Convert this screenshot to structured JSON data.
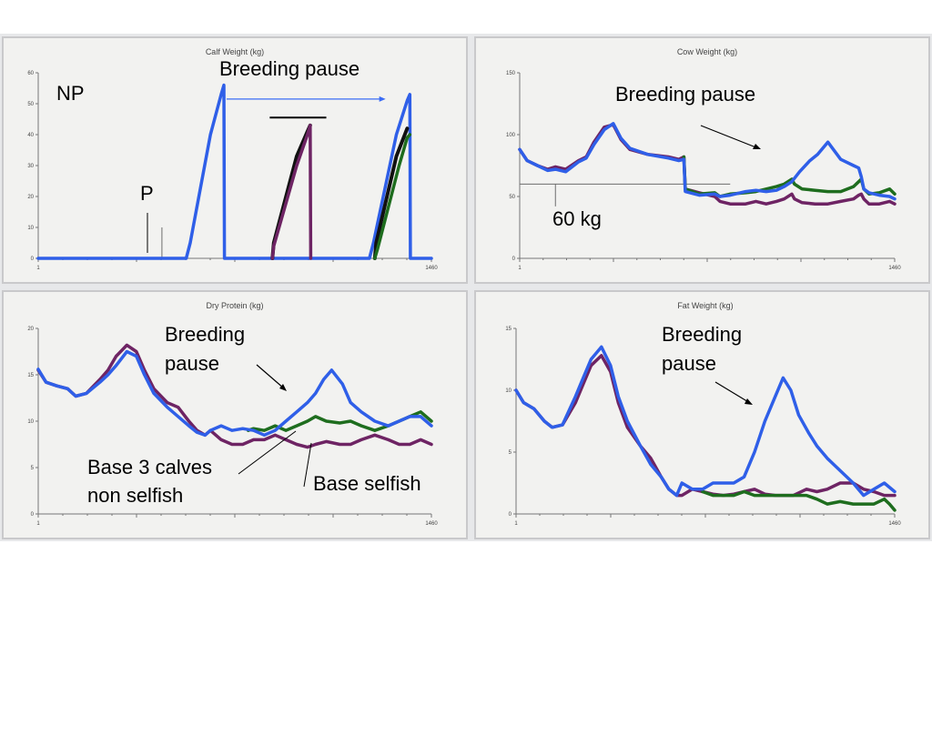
{
  "colors": {
    "blue": "#2f5fe8",
    "green": "#1e6d1e",
    "purple": "#6e2464",
    "black": "#111111",
    "refline": "#6d6d6d",
    "annotation_line": "#000000",
    "thin_blue": "#3a6cf5"
  },
  "annotations": {
    "np": "NP",
    "p": "P",
    "breeding_pause_calf": "Breeding pause",
    "breeding_pause_cow": "Breeding pause",
    "kg60": "60 kg",
    "breeding_pause_protein_1": "Breeding",
    "breeding_pause_protein_2": "pause",
    "breeding_pause_fat_1": "Breeding",
    "breeding_pause_fat_2": "pause",
    "base3_1": "Base 3 calves",
    "base3_2": "non selfish",
    "base_selfish": "Base selfish"
  },
  "chart_data": [
    {
      "type": "line",
      "title": "Calf Weight (kg)",
      "xlim": [
        1,
        1460
      ],
      "ylim": [
        0,
        60
      ],
      "yticks": [
        0,
        10,
        20,
        30,
        40,
        50,
        60
      ],
      "xtick_labels": [
        "1",
        "1460"
      ],
      "series": [
        {
          "color": "blue",
          "x": [
            1,
            550,
            565,
            640,
            680,
            690,
            692,
            1230,
            1245,
            1330,
            1370,
            1380,
            1382,
            1460
          ],
          "y": [
            0,
            0,
            5,
            40,
            53,
            56,
            0,
            0,
            5,
            40,
            51,
            53,
            0,
            0
          ]
        },
        {
          "color": "black",
          "x": [
            870,
            875,
            960,
            1000,
            1010
          ],
          "y": [
            0,
            5,
            33,
            41,
            43
          ]
        },
        {
          "color": "purple",
          "x": [
            870,
            875,
            960,
            1000,
            1010,
            1012
          ],
          "y": [
            0,
            4,
            30,
            40,
            43,
            0
          ]
        },
        {
          "color": "black",
          "x": [
            1250,
            1255,
            1330,
            1370
          ],
          "y": [
            0,
            5,
            33,
            42
          ]
        },
        {
          "color": "green",
          "x": [
            1250,
            1260,
            1340,
            1370,
            1380
          ],
          "y": [
            0,
            3,
            30,
            39,
            40
          ]
        }
      ],
      "ref_lines": [
        {
          "kind": "vertical",
          "x": 460,
          "y0": 0,
          "y1": 10
        },
        {
          "kind": "hbar",
          "x0": 860,
          "x1": 1070,
          "y": 45.5
        }
      ],
      "arrows": [
        {
          "x0": 700,
          "x1": 1290,
          "y": 51.5
        }
      ]
    },
    {
      "type": "line",
      "title": "Cow Weight (kg)",
      "xlim": [
        1,
        1460
      ],
      "ylim": [
        0,
        150
      ],
      "yticks": [
        0,
        50,
        100,
        150
      ],
      "xtick_labels": [
        "1",
        "1460"
      ],
      "series": [
        {
          "color": "purple",
          "x": [
            1,
            30,
            70,
            110,
            140,
            180,
            230,
            260,
            290,
            330,
            365,
            395,
            430,
            500,
            580,
            620,
            640,
            645,
            700,
            760,
            780,
            820,
            880,
            920,
            960,
            1000,
            1030,
            1060,
            1070,
            1100,
            1150,
            1200,
            1250,
            1300,
            1320,
            1330,
            1340,
            1360,
            1400,
            1440,
            1460
          ],
          "y": [
            88,
            79,
            75,
            72,
            74,
            72,
            79,
            82,
            94,
            106,
            108,
            96,
            88,
            84,
            82,
            80,
            82,
            56,
            53,
            50,
            46,
            44,
            44,
            46,
            44,
            46,
            48,
            52,
            48,
            45,
            44,
            44,
            46,
            48,
            51,
            52,
            48,
            44,
            44,
            46,
            44
          ]
        },
        {
          "color": "green",
          "x": [
            640,
            645,
            700,
            760,
            780,
            820,
            880,
            920,
            960,
            1000,
            1030,
            1060,
            1070,
            1100,
            1150,
            1200,
            1250,
            1300,
            1320,
            1330,
            1340,
            1360,
            1400,
            1440,
            1460
          ],
          "y": [
            82,
            56,
            52,
            53,
            50,
            52,
            53,
            54,
            56,
            58,
            60,
            64,
            60,
            56,
            55,
            54,
            54,
            58,
            62,
            64,
            56,
            52,
            53,
            56,
            52
          ]
        },
        {
          "color": "blue",
          "x": [
            1,
            30,
            70,
            110,
            140,
            180,
            230,
            260,
            290,
            330,
            365,
            395,
            430,
            500,
            580,
            620,
            640,
            645,
            700,
            760,
            780,
            820,
            880,
            920,
            960,
            1000,
            1030,
            1060,
            1090,
            1130,
            1160,
            1200,
            1250,
            1300,
            1320,
            1330,
            1340,
            1360,
            1400,
            1440,
            1460
          ],
          "y": [
            88,
            79,
            75,
            71,
            72,
            70,
            78,
            81,
            92,
            104,
            109,
            97,
            89,
            84,
            81,
            79,
            80,
            54,
            51,
            52,
            50,
            51,
            54,
            55,
            54,
            55,
            58,
            62,
            70,
            79,
            84,
            94,
            80,
            75,
            73,
            66,
            56,
            53,
            51,
            50,
            48
          ]
        }
      ],
      "ref_lines": [
        {
          "kind": "horizontal",
          "y": 60,
          "x0": 1,
          "x1": 820
        },
        {
          "kind": "vertical",
          "x": 140,
          "y0": 60,
          "y1": 42
        }
      ]
    },
    {
      "type": "line",
      "title": "Dry Protein (kg)",
      "xlim": [
        1,
        1460
      ],
      "ylim": [
        0,
        20
      ],
      "yticks": [
        0,
        5,
        10,
        15,
        20
      ],
      "xtick_labels": [
        "1",
        "1460"
      ],
      "series": [
        {
          "color": "purple",
          "x": [
            1,
            30,
            70,
            110,
            140,
            180,
            230,
            260,
            290,
            330,
            365,
            395,
            430,
            480,
            520,
            560,
            590,
            620,
            640,
            680,
            720,
            760,
            800,
            840,
            880,
            920,
            960,
            1000,
            1030,
            1070,
            1120,
            1160,
            1200,
            1250,
            1300,
            1340,
            1380,
            1420,
            1460
          ],
          "y": [
            15.5,
            14.2,
            13.8,
            13.5,
            12.7,
            13,
            14.5,
            15.5,
            17,
            18.2,
            17.5,
            15.5,
            13.5,
            12,
            11.5,
            10,
            9,
            8.5,
            9,
            8,
            7.5,
            7.5,
            8,
            8,
            8.5,
            8,
            7.5,
            7.2,
            7.5,
            7.8,
            7.5,
            7.5,
            8,
            8.5,
            8,
            7.5,
            7.5,
            8,
            7.5
          ]
        },
        {
          "color": "green",
          "x": [
            780,
            800,
            840,
            880,
            920,
            960,
            1000,
            1030,
            1070,
            1120,
            1160,
            1200,
            1250,
            1300,
            1340,
            1380,
            1420,
            1460
          ],
          "y": [
            9,
            9.2,
            9,
            9.5,
            9,
            9.5,
            10,
            10.5,
            10,
            9.8,
            10,
            9.5,
            9,
            9.5,
            10,
            10.5,
            11,
            10
          ]
        },
        {
          "color": "blue",
          "x": [
            1,
            30,
            70,
            110,
            140,
            180,
            230,
            260,
            290,
            330,
            365,
            395,
            430,
            480,
            520,
            560,
            590,
            620,
            640,
            680,
            720,
            760,
            800,
            840,
            880,
            920,
            960,
            1000,
            1030,
            1060,
            1090,
            1130,
            1160,
            1200,
            1250,
            1300,
            1340,
            1380,
            1420,
            1460
          ],
          "y": [
            15.6,
            14.2,
            13.8,
            13.5,
            12.7,
            13,
            14.2,
            15,
            16,
            17.5,
            17,
            15,
            13,
            11.5,
            10.5,
            9.5,
            8.8,
            8.5,
            9,
            9.5,
            9,
            9.2,
            9,
            8.5,
            9,
            10,
            11,
            12,
            13,
            14.5,
            15.5,
            14,
            12,
            11,
            10,
            9.5,
            10,
            10.5,
            10.5,
            9.5
          ]
        }
      ]
    },
    {
      "type": "line",
      "title": "Fat Weight (kg)",
      "xlim": [
        1,
        1460
      ],
      "ylim": [
        0,
        15
      ],
      "yticks": [
        0,
        5,
        10,
        15
      ],
      "xtick_labels": [
        "1",
        "1460"
      ],
      "series": [
        {
          "color": "purple",
          "x": [
            1,
            30,
            70,
            110,
            140,
            180,
            230,
            260,
            290,
            330,
            365,
            395,
            430,
            480,
            520,
            560,
            590,
            620,
            640,
            680,
            720,
            760,
            800,
            840,
            880,
            920,
            960,
            1000,
            1030,
            1070,
            1120,
            1160,
            1200,
            1250,
            1300,
            1340,
            1380,
            1420,
            1460
          ],
          "y": [
            10,
            9,
            8.5,
            7.5,
            7,
            7.2,
            9,
            10.5,
            12,
            12.8,
            11.5,
            9,
            7,
            5.5,
            4.5,
            3,
            2,
            1.5,
            1.5,
            2,
            1.8,
            1.6,
            1.5,
            1.6,
            1.8,
            2,
            1.6,
            1.5,
            1.5,
            1.5,
            2,
            1.8,
            2,
            2.5,
            2.5,
            2,
            1.8,
            1.5,
            1.5
          ]
        },
        {
          "color": "green",
          "x": [
            720,
            760,
            800,
            840,
            880,
            920,
            960,
            1000,
            1030,
            1070,
            1120,
            1160,
            1200,
            1250,
            1300,
            1340,
            1380,
            1420,
            1440,
            1460
          ],
          "y": [
            1.8,
            1.5,
            1.5,
            1.5,
            1.8,
            1.5,
            1.5,
            1.5,
            1.5,
            1.5,
            1.5,
            1.2,
            0.8,
            1,
            0.8,
            0.8,
            0.8,
            1.2,
            0.8,
            0.3
          ]
        },
        {
          "color": "blue",
          "x": [
            1,
            30,
            70,
            110,
            140,
            180,
            230,
            260,
            290,
            330,
            365,
            395,
            430,
            480,
            520,
            560,
            590,
            620,
            640,
            680,
            720,
            760,
            800,
            840,
            880,
            920,
            960,
            1000,
            1030,
            1060,
            1090,
            1130,
            1160,
            1200,
            1250,
            1300,
            1340,
            1380,
            1420,
            1460
          ],
          "y": [
            10,
            9,
            8.5,
            7.5,
            7,
            7.2,
            9.5,
            11,
            12.5,
            13.5,
            12,
            9.5,
            7.5,
            5.5,
            4,
            3,
            2,
            1.5,
            2.5,
            2,
            2,
            2.5,
            2.5,
            2.5,
            3,
            5,
            7.5,
            9.5,
            11,
            10,
            8,
            6.5,
            5.5,
            4.5,
            3.5,
            2.5,
            1.5,
            2,
            2.5,
            1.8
          ]
        }
      ]
    }
  ]
}
